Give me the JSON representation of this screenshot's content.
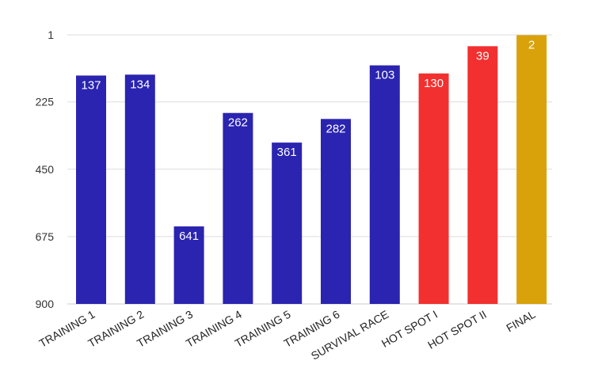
{
  "chart_data": {
    "type": "bar",
    "title": "",
    "xlabel": "",
    "ylabel": "",
    "y_axis_inverted": true,
    "ylim": [
      1,
      900
    ],
    "yticks": [
      1,
      225,
      450,
      675,
      900
    ],
    "grid": true,
    "legend": "none",
    "categories": [
      "TRAINING 1",
      "TRAINING 2",
      "TRAINING 3",
      "TRAINING 4",
      "TRAINING 5",
      "TRAINING 6",
      "SURVIVAL RACE",
      "HOT SPOT I",
      "HOT SPOT II",
      "FINAL"
    ],
    "values": [
      137,
      134,
      641,
      262,
      361,
      282,
      103,
      130,
      39,
      2
    ],
    "bar_colors": [
      "#2a24b0",
      "#2a24b0",
      "#2a24b0",
      "#2a24b0",
      "#2a24b0",
      "#2a24b0",
      "#2a24b0",
      "#f2302f",
      "#f2302f",
      "#d9a20a"
    ]
  }
}
